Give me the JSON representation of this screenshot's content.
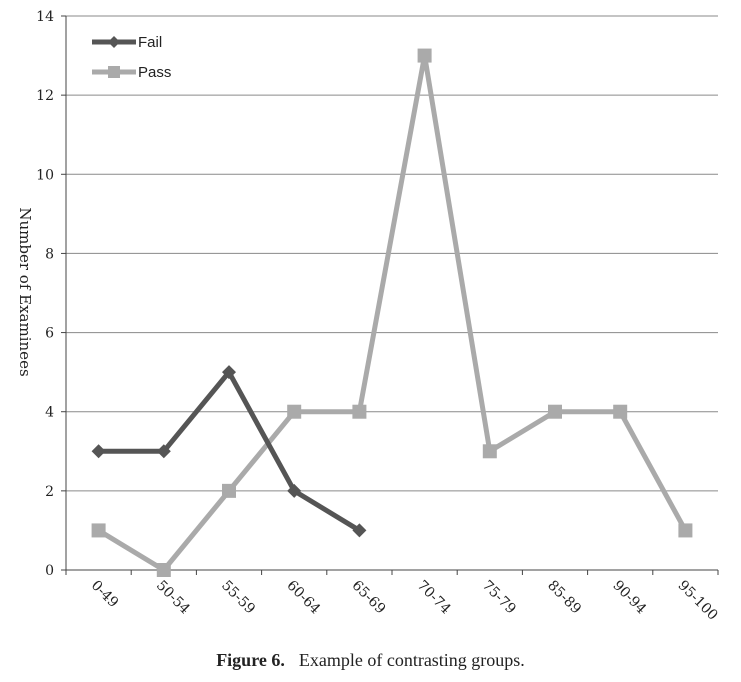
{
  "chart_data": {
    "type": "line",
    "title": "",
    "xlabel": "",
    "ylabel": "Number of Examinees",
    "categories": [
      "0-49",
      "50-54",
      "55-59",
      "60-64",
      "65-69",
      "70-74",
      "75-79",
      "85-89",
      "90-94",
      "95-100"
    ],
    "ylim": [
      0,
      14
    ],
    "yticks": [
      0,
      2,
      4,
      6,
      8,
      10,
      12,
      14
    ],
    "grid": "horizontal",
    "legend_position": "top-left",
    "series": [
      {
        "name": "Fail",
        "marker": "diamond",
        "color": "#555555",
        "values": [
          3,
          3,
          5,
          2,
          1,
          null,
          null,
          null,
          null,
          null
        ]
      },
      {
        "name": "Pass",
        "marker": "square",
        "color": "#aaaaaa",
        "values": [
          1,
          0,
          2,
          4,
          4,
          13,
          3,
          4,
          4,
          1
        ]
      }
    ]
  },
  "caption": {
    "label": "Figure 6.",
    "text": "Example of contrasting groups."
  }
}
